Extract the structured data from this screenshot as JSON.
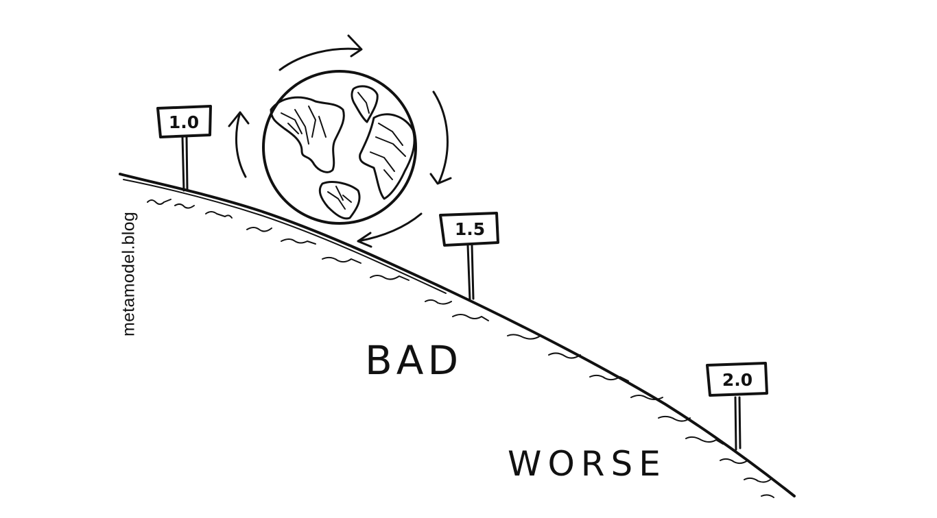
{
  "watermark": "metamodel.blog",
  "signs": [
    {
      "label": "1.0"
    },
    {
      "label": "1.5"
    },
    {
      "label": "2.0"
    }
  ],
  "labels": {
    "bad": "BAD",
    "worse": "WORSE"
  },
  "colors": {
    "ink": "#111111",
    "background": "#ffffff"
  },
  "icons": {
    "globe": "earth-globe-icon",
    "rotation": "rotation-arrows-icon"
  }
}
